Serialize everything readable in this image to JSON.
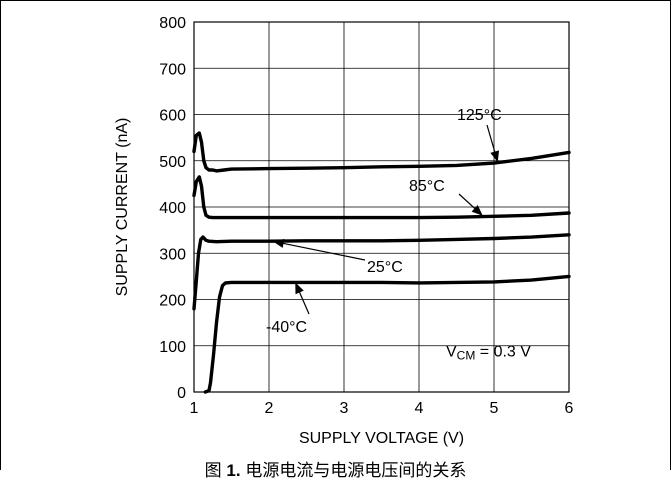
{
  "chart_data": {
    "type": "line",
    "xlabel": "SUPPLY VOLTAGE (V)",
    "ylabel": "SUPPLY CURRENT (nA)",
    "xlim": [
      1,
      6
    ],
    "ylim": [
      0,
      800
    ],
    "x_ticks": [
      "1",
      "2",
      "3",
      "4",
      "5",
      "6"
    ],
    "y_ticks": [
      "0",
      "100",
      "200",
      "300",
      "400",
      "500",
      "600",
      "700",
      "800"
    ],
    "grid": true,
    "annotation": {
      "prefix": "V",
      "subscript": "CM",
      "suffix": " = 0.3 V"
    },
    "series": [
      {
        "name": "125°C",
        "x": [
          1.0,
          1.03,
          1.07,
          1.1,
          1.13,
          1.16,
          1.2,
          1.25,
          1.3,
          1.4,
          1.5,
          2.0,
          2.5,
          3.0,
          3.5,
          4.0,
          4.5,
          5.0,
          5.5,
          6.0
        ],
        "y": [
          520,
          555,
          560,
          540,
          500,
          485,
          480,
          480,
          478,
          480,
          482,
          483,
          484,
          485,
          487,
          488,
          490,
          495,
          505,
          518
        ]
      },
      {
        "name": "85°C",
        "x": [
          1.0,
          1.03,
          1.07,
          1.1,
          1.13,
          1.16,
          1.2,
          1.25,
          1.3,
          1.5,
          2.0,
          2.5,
          3.0,
          3.5,
          4.0,
          4.5,
          5.0,
          5.5,
          6.0
        ],
        "y": [
          425,
          455,
          465,
          445,
          400,
          382,
          378,
          377,
          377,
          377,
          377,
          377,
          377,
          377,
          377,
          378,
          380,
          382,
          387
        ]
      },
      {
        "name": "25°C",
        "x": [
          1.0,
          1.03,
          1.06,
          1.09,
          1.12,
          1.16,
          1.2,
          1.3,
          1.5,
          2.0,
          2.5,
          3.0,
          3.5,
          4.0,
          4.5,
          5.0,
          5.5,
          6.0
        ],
        "y": [
          180,
          240,
          300,
          330,
          335,
          328,
          326,
          325,
          326,
          326,
          327,
          327,
          327,
          328,
          330,
          332,
          335,
          340
        ]
      },
      {
        "name": "-40°C",
        "x": [
          1.15,
          1.2,
          1.22,
          1.26,
          1.3,
          1.34,
          1.38,
          1.42,
          1.5,
          2.0,
          2.5,
          3.0,
          3.5,
          4.0,
          4.5,
          5.0,
          5.5,
          6.0
        ],
        "y": [
          0,
          3,
          20,
          80,
          150,
          205,
          230,
          236,
          237,
          237,
          237,
          237,
          237,
          236,
          237,
          238,
          242,
          250
        ]
      }
    ],
    "callouts": [
      {
        "label": "125°C",
        "point": [
          5.05,
          497
        ]
      },
      {
        "label": "85°C",
        "point": [
          4.85,
          381
        ]
      },
      {
        "label": "25°C",
        "point": [
          2.05,
          326
        ]
      },
      {
        "label": "-40°C",
        "point": [
          2.35,
          237
        ]
      }
    ]
  },
  "caption": {
    "figure_label": "图",
    "figure_number": "1.",
    "text": "电源电流与电源电压间的关系"
  }
}
